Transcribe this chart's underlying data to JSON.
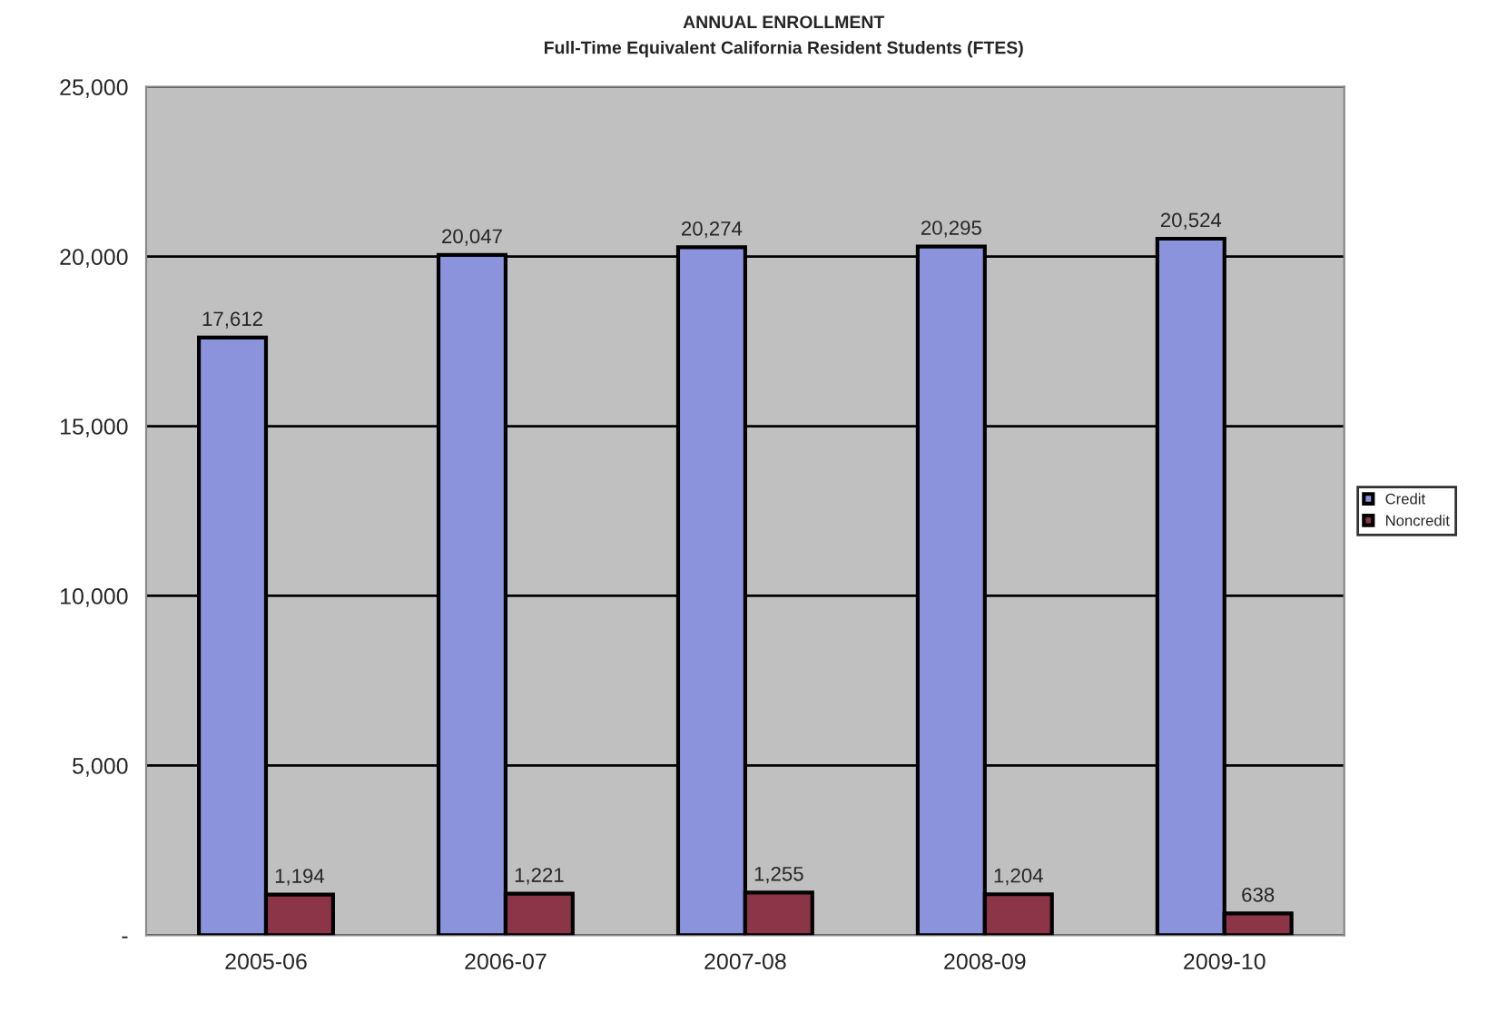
{
  "chart_data": {
    "type": "bar",
    "title": "ANNUAL ENROLLMENT",
    "subtitle": "Full-Time Equivalent California Resident Students (FTES)",
    "categories": [
      "2005-06",
      "2006-07",
      "2007-08",
      "2008-09",
      "2009-10"
    ],
    "series": [
      {
        "name": "Credit",
        "color": "#8a93dc",
        "values": [
          17612,
          20047,
          20274,
          20295,
          20524
        ],
        "value_labels": [
          "17,612",
          "20,047",
          "20,274",
          "20,295",
          "20,524"
        ]
      },
      {
        "name": "Noncredit",
        "color": "#8c3448",
        "values": [
          1194,
          1221,
          1255,
          1204,
          638
        ],
        "value_labels": [
          "1,194",
          "1,221",
          "1,255",
          "1,204",
          "638"
        ]
      }
    ],
    "ylim": [
      0,
      25000
    ],
    "yticks": [
      {
        "value": 0,
        "label": "-"
      },
      {
        "value": 5000,
        "label": "5,000"
      },
      {
        "value": 10000,
        "label": "10,000"
      },
      {
        "value": 15000,
        "label": "15,000"
      },
      {
        "value": 20000,
        "label": "20,000"
      },
      {
        "value": 25000,
        "label": "25,000"
      }
    ],
    "grid": "y",
    "legend": "right"
  }
}
